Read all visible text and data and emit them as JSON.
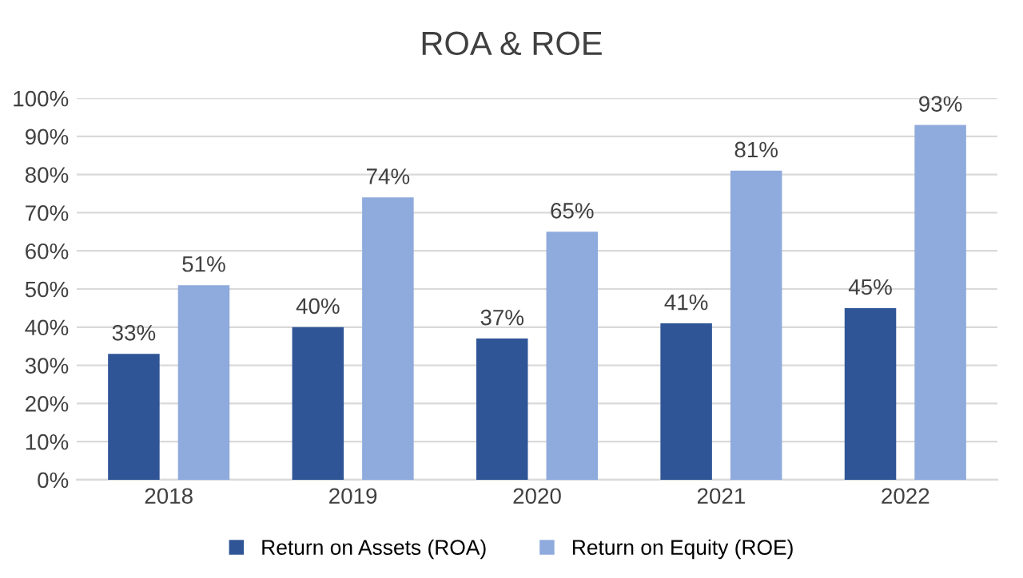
{
  "chart_data": {
    "type": "bar",
    "title": "ROA & ROE",
    "categories": [
      "2018",
      "2019",
      "2020",
      "2021",
      "2022"
    ],
    "series": [
      {
        "name": "Return on Assets (ROA)",
        "color": "#2f5597",
        "values": [
          33,
          40,
          37,
          41,
          45
        ],
        "value_labels": [
          "33%",
          "40%",
          "37%",
          "41%",
          "45%"
        ]
      },
      {
        "name": "Return on Equity (ROE)",
        "color": "#8faadc",
        "values": [
          51,
          74,
          65,
          81,
          93
        ],
        "value_labels": [
          "51%",
          "74%",
          "65%",
          "81%",
          "93%"
        ]
      }
    ],
    "ylim": [
      0,
      100
    ],
    "yticks": [
      {
        "value": 0,
        "label": "0%"
      },
      {
        "value": 10,
        "label": "10%"
      },
      {
        "value": 20,
        "label": "20%"
      },
      {
        "value": 30,
        "label": "30%"
      },
      {
        "value": 40,
        "label": "40%"
      },
      {
        "value": 50,
        "label": "50%"
      },
      {
        "value": 60,
        "label": "60%"
      },
      {
        "value": 70,
        "label": "70%"
      },
      {
        "value": 80,
        "label": "80%"
      },
      {
        "value": 90,
        "label": "90%"
      },
      {
        "value": 100,
        "label": "100%"
      }
    ],
    "grid": "y",
    "legend": "bottom"
  }
}
